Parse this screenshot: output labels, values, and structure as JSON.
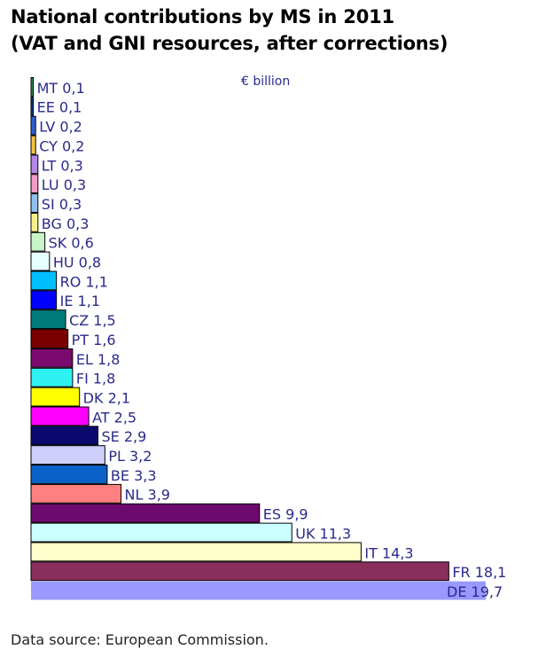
{
  "chart_data": {
    "type": "bar",
    "orientation": "horizontal",
    "title": "National contributions by MS in 2011",
    "subtitle": "(VAT and GNI resources, after corrections)",
    "unit": "€ billion",
    "source": "Data source: European Commission.",
    "grid": false,
    "legend": "none",
    "xlim": [
      0,
      19.7
    ],
    "bars": [
      {
        "code": "MT",
        "value_label": "0,1",
        "value": 0.1,
        "color": "#2e8b57"
      },
      {
        "code": "EE",
        "value_label": "0,1",
        "value": 0.1,
        "color": "#0a3d8f"
      },
      {
        "code": "LV",
        "value_label": "0,2",
        "value": 0.2,
        "color": "#2f5fd0"
      },
      {
        "code": "CY",
        "value_label": "0,2",
        "value": 0.2,
        "color": "#f5c242"
      },
      {
        "code": "LT",
        "value_label": "0,3",
        "value": 0.3,
        "color": "#b388e8"
      },
      {
        "code": "LU",
        "value_label": "0,3",
        "value": 0.3,
        "color": "#f39ac7"
      },
      {
        "code": "SI",
        "value_label": "0,3",
        "value": 0.3,
        "color": "#8fc0ee"
      },
      {
        "code": "BG",
        "value_label": "0,3",
        "value": 0.3,
        "color": "#f7f08a"
      },
      {
        "code": "SK",
        "value_label": "0,6",
        "value": 0.6,
        "color": "#c8f5c8"
      },
      {
        "code": "HU",
        "value_label": "0,8",
        "value": 0.8,
        "color": "#e6ffff"
      },
      {
        "code": "RO",
        "value_label": "1,1",
        "value": 1.1,
        "color": "#00bfff"
      },
      {
        "code": "IE",
        "value_label": "1,1",
        "value": 1.1,
        "color": "#0000ff"
      },
      {
        "code": "CZ",
        "value_label": "1,5",
        "value": 1.5,
        "color": "#007b7b"
      },
      {
        "code": "PT",
        "value_label": "1,6",
        "value": 1.6,
        "color": "#7a0000"
      },
      {
        "code": "EL",
        "value_label": "1,8",
        "value": 1.8,
        "color": "#7a0a6e"
      },
      {
        "code": "FI",
        "value_label": "1,8",
        "value": 1.8,
        "color": "#2ef2f2"
      },
      {
        "code": "DK",
        "value_label": "2,1",
        "value": 2.1,
        "color": "#ffff00"
      },
      {
        "code": "AT",
        "value_label": "2,5",
        "value": 2.5,
        "color": "#ff00ff"
      },
      {
        "code": "SE",
        "value_label": "2,9",
        "value": 2.9,
        "color": "#0a0a6e"
      },
      {
        "code": "PL",
        "value_label": "3,2",
        "value": 3.2,
        "color": "#cfcffb"
      },
      {
        "code": "BE",
        "value_label": "3,3",
        "value": 3.3,
        "color": "#0a62c8"
      },
      {
        "code": "NL",
        "value_label": "3,9",
        "value": 3.9,
        "color": "#ff8080"
      },
      {
        "code": "ES",
        "value_label": "9,9",
        "value": 9.9,
        "color": "#6e0a6e"
      },
      {
        "code": "UK",
        "value_label": "11,3",
        "value": 11.3,
        "color": "#ccffff"
      },
      {
        "code": "IT",
        "value_label": "14,3",
        "value": 14.3,
        "color": "#ffffcc"
      },
      {
        "code": "FR",
        "value_label": "18,1",
        "value": 18.1,
        "color": "#8a2e5c"
      },
      {
        "code": "DE",
        "value_label": "19,7",
        "value": 19.7,
        "color": "#9999ff"
      }
    ]
  }
}
